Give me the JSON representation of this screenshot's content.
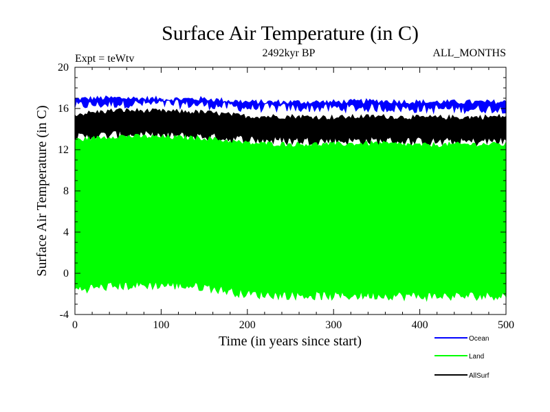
{
  "chart_data": {
    "type": "line",
    "title": "Surface Air Temperature (in C)",
    "subtitle": "2492kyr BP",
    "experiment": "Expt = teWtv",
    "months": "ALL_MONTHS",
    "xlabel": "Time (in years since start)",
    "ylabel": "Surface Air Temperature (in C)",
    "xlim": [
      0,
      500
    ],
    "ylim": [
      -4,
      20
    ],
    "xticks": [
      0,
      100,
      200,
      300,
      400,
      500
    ],
    "yticks": [
      -4,
      0,
      4,
      8,
      12,
      16,
      20
    ],
    "legend_position": "bottom-right",
    "series": [
      {
        "name": "Ocean",
        "color": "#0000ff",
        "description": "seasonal band approx 16.2-17.0 C, slight decline over time",
        "band": {
          "x": [
            0,
            50,
            100,
            150,
            200,
            250,
            300,
            350,
            400,
            450,
            500
          ],
          "lo": [
            16.3,
            16.5,
            16.5,
            16.4,
            16.1,
            16.1,
            16.1,
            16.1,
            16.0,
            16.0,
            16.0
          ],
          "hi": [
            16.9,
            17.0,
            16.9,
            16.9,
            16.6,
            16.6,
            16.6,
            16.7,
            16.6,
            16.6,
            16.6
          ]
        }
      },
      {
        "name": "AllSurf",
        "color": "#000000",
        "description": "seasonal band approx 12.8-15.8 C",
        "band": {
          "x": [
            0,
            50,
            100,
            150,
            200,
            250,
            300,
            350,
            400,
            450,
            500
          ],
          "lo": [
            13.2,
            13.5,
            13.4,
            13.3,
            13.0,
            12.9,
            12.9,
            12.9,
            12.8,
            12.8,
            12.9
          ],
          "hi": [
            15.4,
            15.8,
            15.7,
            15.6,
            15.2,
            15.2,
            15.1,
            15.2,
            15.1,
            15.1,
            15.2
          ]
        }
      },
      {
        "name": "Land",
        "color": "#00ff00",
        "description": "seasonal band approx -2.5 to 13.5 C",
        "band": {
          "x": [
            0,
            50,
            100,
            150,
            200,
            250,
            300,
            350,
            400,
            450,
            500
          ],
          "lo": [
            -1.5,
            -1.2,
            -1.1,
            -1.3,
            -2.0,
            -2.1,
            -2.2,
            -2.1,
            -2.2,
            -2.2,
            -2.1
          ],
          "hi": [
            12.9,
            13.3,
            13.2,
            13.1,
            12.6,
            12.5,
            12.5,
            12.6,
            12.4,
            12.5,
            12.5
          ]
        }
      }
    ],
    "legend": [
      {
        "label": "Ocean",
        "color": "#0000ff"
      },
      {
        "label": "Land",
        "color": "#00ff00"
      },
      {
        "label": "AllSurf",
        "color": "#000000"
      }
    ]
  }
}
